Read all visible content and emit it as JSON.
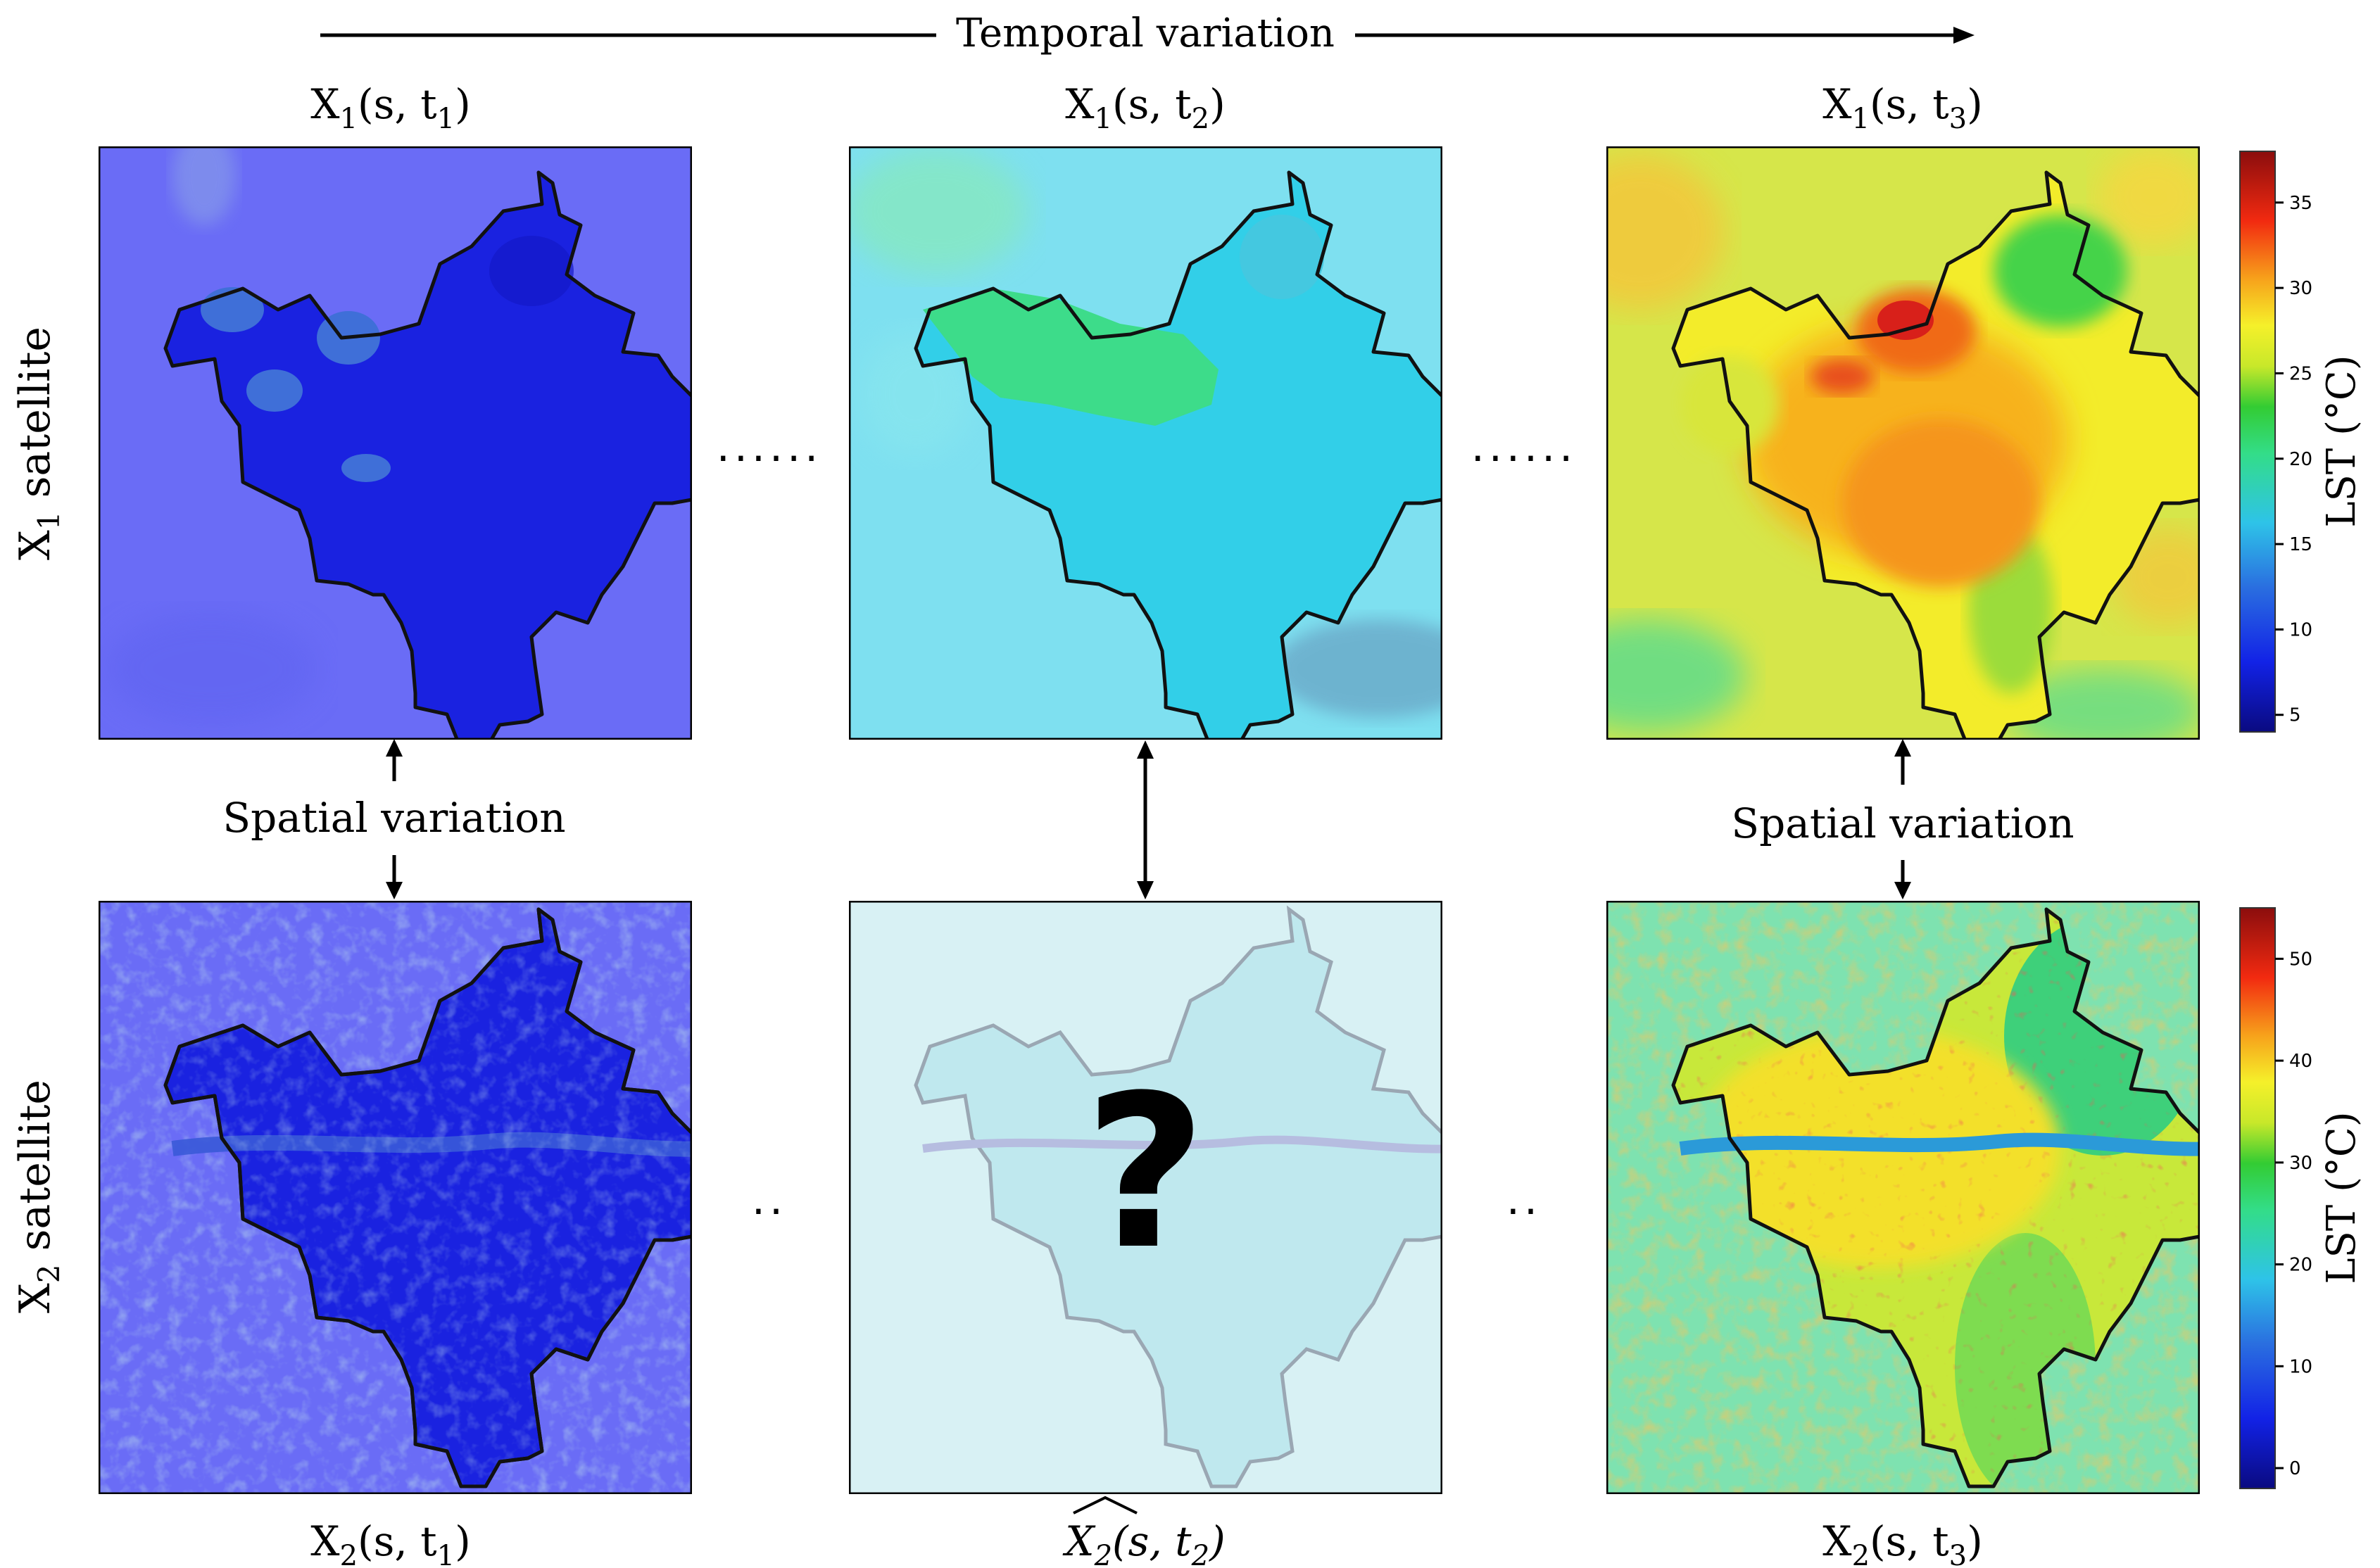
{
  "header": {
    "temporal_label": "Temporal variation"
  },
  "rows": {
    "x1_label_main": "X",
    "x1_label_sub": "1",
    "x1_label_tail": " satellite",
    "x2_label_main": "X",
    "x2_label_sub": "2",
    "x2_label_tail": " satellite"
  },
  "panel_titles": {
    "p1": {
      "base": "X",
      "sub": "1",
      "args": "(s, t",
      "tsub": "1",
      "close": ")"
    },
    "p2": {
      "base": "X",
      "sub": "1",
      "args": "(s, t",
      "tsub": "2",
      "close": ")"
    },
    "p3": {
      "base": "X",
      "sub": "1",
      "args": "(s, t",
      "tsub": "3",
      "close": ")"
    },
    "p4": {
      "base": "X",
      "sub": "2",
      "args": "(s, t",
      "tsub": "1",
      "close": ")"
    },
    "p5": {
      "base": "X",
      "sub": "2",
      "args": "(s, t",
      "tsub": "2",
      "close": ")"
    },
    "p6": {
      "base": "X",
      "sub": "2",
      "args": "(s, t",
      "tsub": "3",
      "close": ")"
    }
  },
  "spatial": {
    "left_label": "Spatial variation",
    "right_label": "Spatial variation"
  },
  "ellipsis": {
    "top": "......",
    "bottom": ".."
  },
  "unknown_mark": "?",
  "colorbar_top": {
    "label": "LST (°C)",
    "ticks": [
      "5",
      "10",
      "15",
      "20",
      "25",
      "30",
      "35"
    ],
    "range": [
      4,
      38
    ]
  },
  "colorbar_bottom": {
    "label": "LST (°C)",
    "ticks": [
      "0",
      "10",
      "20",
      "30",
      "40",
      "50"
    ],
    "range": [
      -2,
      55
    ]
  },
  "colors": {
    "cold_blue": "#1a2de0",
    "bg_blue": "#6f6ff7",
    "cyan": "#35cfe8",
    "green": "#33dd66",
    "yellow": "#f5f02a",
    "orange": "#f7a21b",
    "red": "#d7191c"
  }
}
